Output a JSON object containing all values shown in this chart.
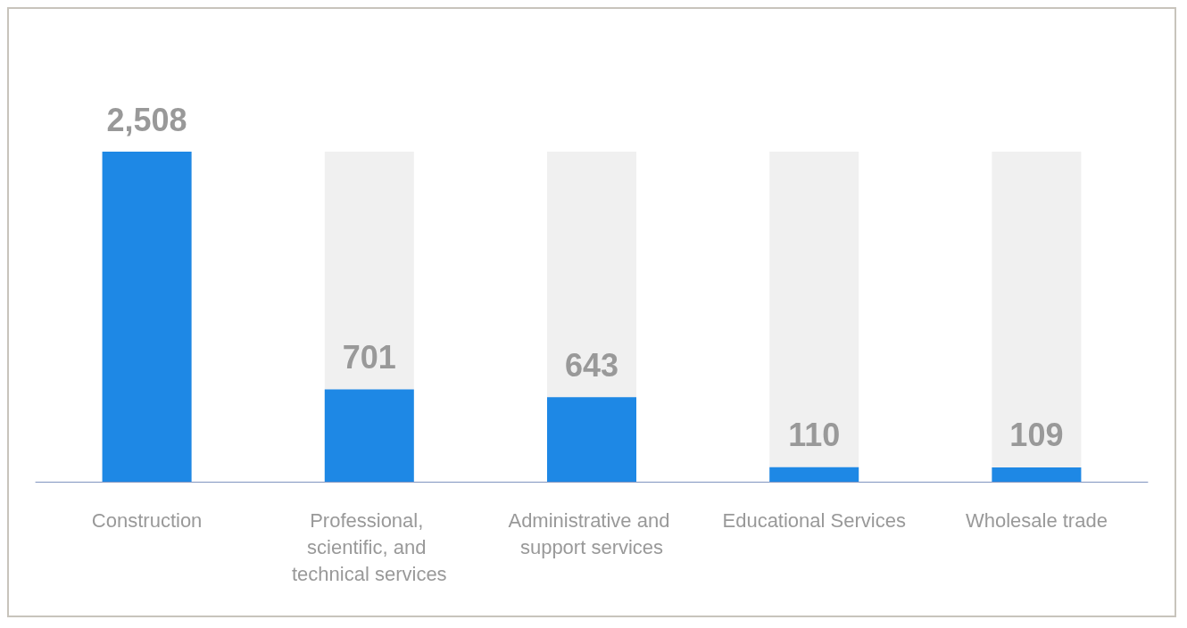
{
  "chart_data": {
    "type": "bar",
    "categories": [
      "Construction",
      "Professional, scientific, and technical services",
      "Administrative and support services",
      "Educational Services",
      "Wholesale trade"
    ],
    "values": [
      2508,
      701,
      643,
      110,
      109
    ],
    "value_labels": [
      "2,508",
      "701",
      "643",
      "110",
      "109"
    ],
    "color": "#1e88e5"
  }
}
